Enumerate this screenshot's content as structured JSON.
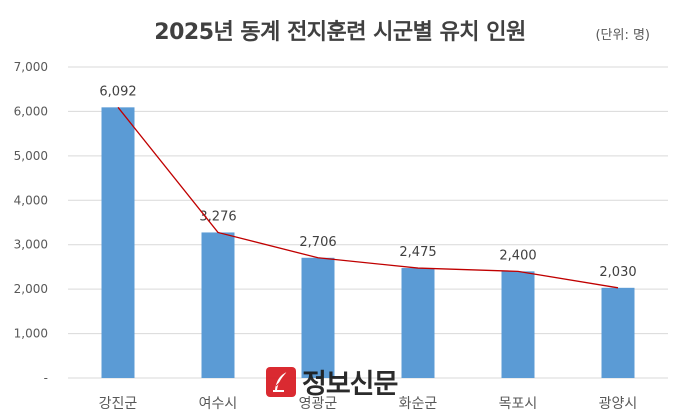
{
  "chart_data": {
    "type": "bar",
    "title": "2025년 동계 전지훈련 시군별 유치 인원",
    "unit": "(단위: 명)",
    "categories": [
      "강진군",
      "여수시",
      "영광군",
      "화순군",
      "목포시",
      "광양시"
    ],
    "values": [
      6092,
      3276,
      2706,
      2475,
      2400,
      2030
    ],
    "data_labels": [
      "6,092",
      "3,276",
      "2,706",
      "2,475",
      "2,400",
      "2,030"
    ],
    "overlay": "line",
    "ylim": [
      0,
      7000
    ],
    "yticks": [
      0,
      1000,
      2000,
      3000,
      4000,
      5000,
      6000,
      7000
    ],
    "ytick_labels": [
      "-",
      "1,000",
      "2,000",
      "3,000",
      "4,000",
      "5,000",
      "6,000",
      "7,000"
    ],
    "grid": true,
    "colors": {
      "bar": "#5b9bd5",
      "line": "#c00000",
      "grid": "#d9d9d9",
      "text": "#595959"
    }
  },
  "watermark": {
    "text": "정보신문",
    "icon": "quill-logo-icon"
  }
}
